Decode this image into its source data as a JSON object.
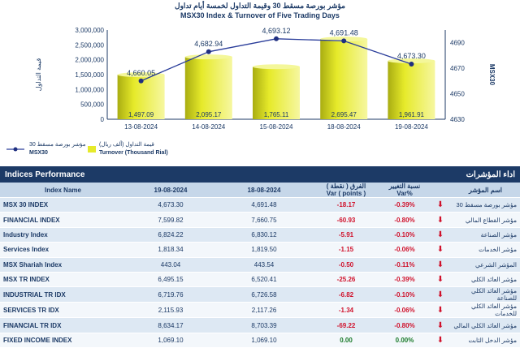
{
  "chart_data": {
    "type": "bar+line",
    "title_ar": "مؤشر بورصة مسقط 30 وقيمة التداول لخمسة أيام تداول",
    "title": "MSX30 Index & Turnover of Five Trading Days",
    "categories": [
      "13-08-2024",
      "14-08-2024",
      "15-08-2024",
      "18-08-2024",
      "19-08-2024"
    ],
    "bars": {
      "name": "Turnover (Thousand Rial)",
      "name_ar": "قيمة التداول (ألف ريال)",
      "values": [
        1497.09,
        2095.17,
        1765.11,
        2695.47,
        1961.91
      ],
      "labels": [
        "1,497.09",
        "2,095.17",
        "1,765.11",
        "2,695.47",
        "1,961.91"
      ],
      "left_axis_scale_values": [
        1497090,
        2095170,
        1765110,
        2695470,
        1961910
      ]
    },
    "line": {
      "name": "MSX30",
      "name_ar": "مؤشر بورصة مسقط 30",
      "values": [
        4660.05,
        4682.94,
        4693.12,
        4691.48,
        4673.3
      ],
      "labels": [
        "4,660.05",
        "4,682.94",
        "4,693.12",
        "4,691.48",
        "4,673.30"
      ]
    },
    "left_axis": {
      "ticks": [
        "0",
        "500,000",
        "1,000,000",
        "1,500,000",
        "2,000,000",
        "2,500,000",
        "3,000,000"
      ],
      "label_ar": "قيمة التداول",
      "range": [
        0,
        3000000
      ]
    },
    "right_axis": {
      "ticks": [
        "4630",
        "4650",
        "4670",
        "4690"
      ],
      "label": "MSX30",
      "range": [
        4630,
        4700
      ]
    },
    "colors": {
      "bar": "#e6ea2a",
      "bar_dark": "#a9ad12",
      "line": "#2a3d9a",
      "marker": "#1f2f80"
    }
  },
  "table": {
    "title": "Indices Performance",
    "title_ar": "اداء المؤشرات",
    "headers": {
      "name": "Index Name",
      "d1": "19-08-2024",
      "d2": "18-08-2024",
      "var_ar": "الفرق ( نقطة )",
      "var": "Var ( points )",
      "pct_ar": "نسبة التغيير",
      "pct": "Var%",
      "ar": "اسم المؤشر"
    },
    "rows": [
      {
        "name": "MSX 30 INDEX",
        "d1": "4,673.30",
        "d2": "4,691.48",
        "var": "-18.17",
        "pct": "-0.39%",
        "ar": "مؤشر بورصة مسقط 30",
        "arrow": "down-arrow-icon"
      },
      {
        "name": "FINANCIAL INDEX",
        "d1": "7,599.82",
        "d2": "7,660.75",
        "var": "-60.93",
        "pct": "-0.80%",
        "ar": "مؤشر القطاع المالي",
        "arrow": "down-arrow-icon"
      },
      {
        "name": "Industry Index",
        "d1": "6,824.22",
        "d2": "6,830.12",
        "var": "-5.91",
        "pct": "-0.10%",
        "ar": "مؤشر الصناعة",
        "arrow": "down-arrow-icon"
      },
      {
        "name": "Services Index",
        "d1": "1,818.34",
        "d2": "1,819.50",
        "var": "-1.15",
        "pct": "-0.06%",
        "ar": "مؤشر الخدمات",
        "arrow": "down-arrow-icon"
      },
      {
        "name": "MSX Shariah Index",
        "d1": "443.04",
        "d2": "443.54",
        "var": "-0.50",
        "pct": "-0.11%",
        "ar": "المؤشر الشرعي",
        "arrow": "down-arrow-icon"
      },
      {
        "name": "MSX TR INDEX",
        "d1": "6,495.15",
        "d2": "6,520.41",
        "var": "-25.26",
        "pct": "-0.39%",
        "ar": "مؤشر العائد الكلي",
        "arrow": "down-arrow-icon"
      },
      {
        "name": "INDUSTRIAL TR IDX",
        "d1": "6,719.76",
        "d2": "6,726.58",
        "var": "-6.82",
        "pct": "-0.10%",
        "ar": "مؤشر العائد الكلي للصناعة",
        "arrow": "down-arrow-icon"
      },
      {
        "name": "SERVICES TR IDX",
        "d1": "2,115.93",
        "d2": "2,117.26",
        "var": "-1.34",
        "pct": "-0.06%",
        "ar": "مؤشر العائد الكلي للخدمات",
        "arrow": "down-arrow-icon"
      },
      {
        "name": "FINANCIAL TR IDX",
        "d1": "8,634.17",
        "d2": "8,703.39",
        "var": "-69.22",
        "pct": "-0.80%",
        "ar": "مؤشر العائد الكلي المالي",
        "arrow": "down-arrow-icon"
      },
      {
        "name": "FIXED INCOME INDEX",
        "d1": "1,069.10",
        "d2": "1,069.10",
        "var": "0.00",
        "pct": "0.00%",
        "ar": "مؤشر الدخل الثابت",
        "arrow": "down-arrow-icon"
      }
    ]
  }
}
